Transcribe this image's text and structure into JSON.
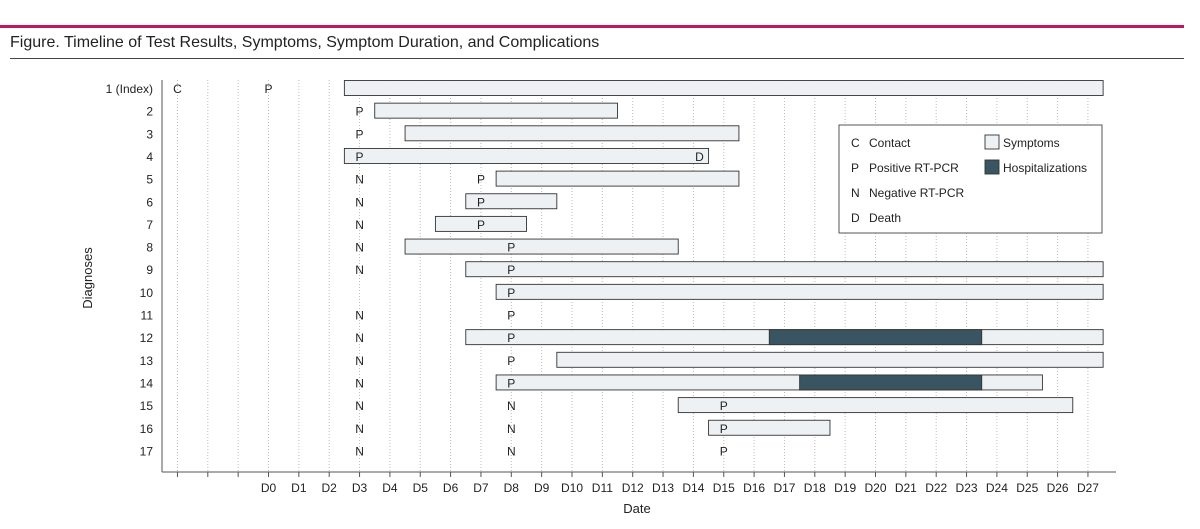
{
  "title": "Figure. Timeline of Test Results, Symptoms, Symptom Duration, and Complications",
  "chart_data": {
    "type": "gantt",
    "xlabel": "Date",
    "ylabel": "Diagnoses",
    "x_ticks": [
      "",
      "",
      "",
      "D0",
      "D1",
      "D2",
      "D3",
      "D4",
      "D5",
      "D6",
      "D7",
      "D8",
      "D9",
      "D10",
      "D11",
      "D12",
      "D13",
      "D14",
      "D15",
      "D16",
      "D17",
      "D18",
      "D19",
      "D20",
      "D21",
      "D22",
      "D23",
      "D24",
      "D25",
      "D26",
      "D27"
    ],
    "grid": "vertical dotted",
    "rows": [
      {
        "label": "1 (Index)",
        "symptoms": [
          [
            2.5,
            27.5
          ]
        ],
        "hosp": [],
        "markers": [
          {
            "day": -3,
            "text": "C"
          },
          {
            "day": 0,
            "text": "P"
          }
        ]
      },
      {
        "label": "2",
        "symptoms": [
          [
            3.5,
            11.5
          ]
        ],
        "hosp": [],
        "markers": [
          {
            "day": 3,
            "text": "P"
          }
        ]
      },
      {
        "label": "3",
        "symptoms": [
          [
            4.5,
            15.5
          ]
        ],
        "hosp": [],
        "markers": [
          {
            "day": 3,
            "text": "P"
          }
        ]
      },
      {
        "label": "4",
        "symptoms": [
          [
            2.5,
            14.5
          ]
        ],
        "hosp": [],
        "markers": [
          {
            "day": 3,
            "text": "P"
          },
          {
            "day": 14.2,
            "text": "D"
          }
        ]
      },
      {
        "label": "5",
        "symptoms": [
          [
            7.5,
            15.5
          ]
        ],
        "hosp": [],
        "markers": [
          {
            "day": 3,
            "text": "N"
          },
          {
            "day": 7,
            "text": "P"
          }
        ]
      },
      {
        "label": "6",
        "symptoms": [
          [
            6.5,
            9.5
          ]
        ],
        "hosp": [],
        "markers": [
          {
            "day": 3,
            "text": "N"
          },
          {
            "day": 7,
            "text": "P"
          }
        ]
      },
      {
        "label": "7",
        "symptoms": [
          [
            5.5,
            8.5
          ]
        ],
        "hosp": [],
        "markers": [
          {
            "day": 3,
            "text": "N"
          },
          {
            "day": 7,
            "text": "P"
          }
        ]
      },
      {
        "label": "8",
        "symptoms": [
          [
            4.5,
            13.5
          ]
        ],
        "hosp": [],
        "markers": [
          {
            "day": 3,
            "text": "N"
          },
          {
            "day": 8,
            "text": "P"
          }
        ]
      },
      {
        "label": "9",
        "symptoms": [
          [
            6.5,
            27.5
          ]
        ],
        "hosp": [],
        "markers": [
          {
            "day": 3,
            "text": "N"
          },
          {
            "day": 8,
            "text": "P"
          }
        ]
      },
      {
        "label": "10",
        "symptoms": [
          [
            7.5,
            27.5
          ]
        ],
        "hosp": [],
        "markers": [
          {
            "day": 8,
            "text": "P"
          }
        ]
      },
      {
        "label": "11",
        "symptoms": [],
        "hosp": [],
        "markers": [
          {
            "day": 3,
            "text": "N"
          },
          {
            "day": 8,
            "text": "P"
          }
        ]
      },
      {
        "label": "12",
        "symptoms": [
          [
            6.5,
            27.5
          ]
        ],
        "hosp": [
          [
            16.5,
            23.5
          ]
        ],
        "markers": [
          {
            "day": 3,
            "text": "N"
          },
          {
            "day": 8,
            "text": "P"
          }
        ]
      },
      {
        "label": "13",
        "symptoms": [
          [
            9.5,
            27.5
          ]
        ],
        "hosp": [],
        "markers": [
          {
            "day": 3,
            "text": "N"
          },
          {
            "day": 8,
            "text": "P"
          }
        ]
      },
      {
        "label": "14",
        "symptoms": [
          [
            7.5,
            25.5
          ]
        ],
        "hosp": [
          [
            17.5,
            23.5
          ]
        ],
        "markers": [
          {
            "day": 3,
            "text": "N"
          },
          {
            "day": 8,
            "text": "P"
          }
        ]
      },
      {
        "label": "15",
        "symptoms": [
          [
            13.5,
            26.5
          ]
        ],
        "hosp": [],
        "markers": [
          {
            "day": 3,
            "text": "N"
          },
          {
            "day": 8,
            "text": "N"
          },
          {
            "day": 15,
            "text": "P"
          }
        ]
      },
      {
        "label": "16",
        "symptoms": [
          [
            14.5,
            18.5
          ]
        ],
        "hosp": [],
        "markers": [
          {
            "day": 3,
            "text": "N"
          },
          {
            "day": 8,
            "text": "N"
          },
          {
            "day": 15,
            "text": "P"
          }
        ]
      },
      {
        "label": "17",
        "symptoms": [],
        "hosp": [],
        "markers": [
          {
            "day": 3,
            "text": "N"
          },
          {
            "day": 8,
            "text": "N"
          },
          {
            "day": 15,
            "text": "P"
          }
        ]
      }
    ],
    "legend": {
      "placement": "top-right",
      "keys": [
        {
          "letter": "C",
          "text": "Contact"
        },
        {
          "letter": "P",
          "text": "Positive RT-PCR"
        },
        {
          "letter": "N",
          "text": "Negative RT-PCR"
        },
        {
          "letter": "D",
          "text": "Death"
        }
      ],
      "swatches": [
        {
          "text": "Symptoms",
          "color": "#eef1f4"
        },
        {
          "text": "Hospitalizations",
          "color": "#3a5562"
        }
      ]
    },
    "colors": {
      "symptoms": "#eef1f4",
      "hospitalizations": "#3a5562",
      "accent": "#c2185b"
    }
  }
}
